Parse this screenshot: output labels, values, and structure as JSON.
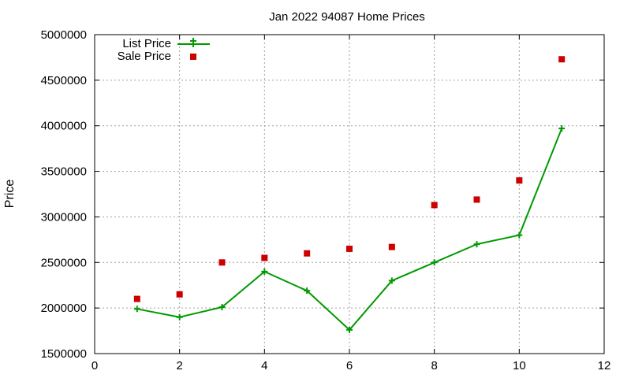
{
  "chart_data": {
    "type": "line",
    "title": "Jan 2022 94087 Home Prices",
    "xlabel": "",
    "ylabel": "Price",
    "xlim": [
      0,
      12
    ],
    "ylim": [
      1500000,
      5000000
    ],
    "xticks": [
      "0",
      "2",
      "4",
      "6",
      "8",
      "10",
      "12"
    ],
    "yticks": [
      "1500000",
      "2000000",
      "2500000",
      "3000000",
      "3500000",
      "4000000",
      "4500000",
      "5000000"
    ],
    "grid": true,
    "legend_position": "top-left",
    "series": [
      {
        "name": "List Price",
        "style": "line-with-plus-markers",
        "color": "#009900",
        "x": [
          1,
          2,
          3,
          4,
          5,
          6,
          7,
          8,
          9,
          10,
          11
        ],
        "y": [
          1990000,
          1900000,
          2010000,
          2400000,
          2190000,
          1760000,
          2300000,
          2500000,
          2700000,
          2800000,
          3970000
        ]
      },
      {
        "name": "Sale Price",
        "style": "square-markers",
        "color": "#cc0000",
        "x": [
          1,
          2,
          3,
          4,
          5,
          6,
          7,
          8,
          9,
          10,
          11
        ],
        "y": [
          2100000,
          2150000,
          2500000,
          2550000,
          2600000,
          2650000,
          2670000,
          3130000,
          3190000,
          3400000,
          4730000
        ]
      }
    ]
  }
}
